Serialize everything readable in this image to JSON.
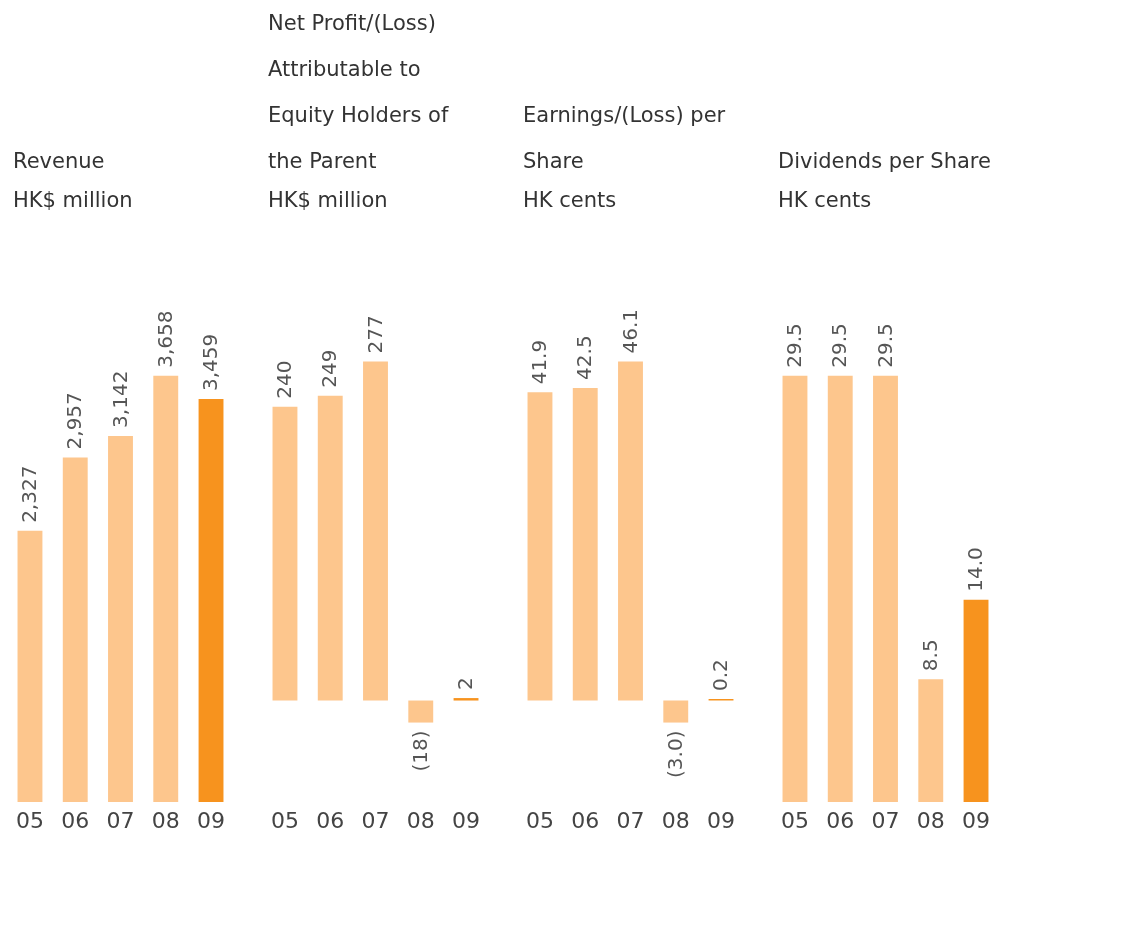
{
  "chart_data": [
    {
      "type": "bar",
      "title": "Revenue",
      "subtitle": "HK$ million",
      "categories": [
        "05",
        "06",
        "07",
        "08",
        "09"
      ],
      "values": [
        2327,
        2957,
        3142,
        3658,
        3459
      ],
      "colors": [
        "#fdc68d",
        "#fdc68d",
        "#fdc68d",
        "#fdc68d",
        "#f7931e"
      ],
      "value_labels": [
        "2,327",
        "2,957",
        "3,142",
        "3,658",
        "3,459"
      ]
    },
    {
      "type": "bar",
      "title": "Net Profit/(Loss) Attributable to Equity Holders of the Parent",
      "subtitle": "HK$ million",
      "categories": [
        "05",
        "06",
        "07",
        "08",
        "09"
      ],
      "values": [
        240,
        249,
        277,
        -18,
        2
      ],
      "colors": [
        "#fdc68d",
        "#fdc68d",
        "#fdc68d",
        "#fdc68d",
        "#f7931e"
      ],
      "value_labels": [
        "240",
        "249",
        "277",
        "(18)",
        "2"
      ]
    },
    {
      "type": "bar",
      "title": "Earnings/(Loss) per Share",
      "subtitle": "HK cents",
      "categories": [
        "05",
        "06",
        "07",
        "08",
        "09"
      ],
      "values": [
        41.9,
        42.5,
        46.1,
        -3.0,
        0.2
      ],
      "colors": [
        "#fdc68d",
        "#fdc68d",
        "#fdc68d",
        "#fdc68d",
        "#f7931e"
      ],
      "value_labels": [
        "41.9",
        "42.5",
        "46.1",
        "(3.0)",
        "0.2"
      ]
    },
    {
      "type": "bar",
      "title": "Dividends per Share",
      "subtitle": "HK cents",
      "categories": [
        "05",
        "06",
        "07",
        "08",
        "09"
      ],
      "values": [
        29.5,
        29.5,
        29.5,
        8.5,
        14.0
      ],
      "colors": [
        "#fdc68d",
        "#fdc68d",
        "#fdc68d",
        "#fdc68d",
        "#f7931e"
      ],
      "value_labels": [
        "29.5",
        "29.5",
        "29.5",
        "8.5",
        "14.0"
      ]
    }
  ]
}
